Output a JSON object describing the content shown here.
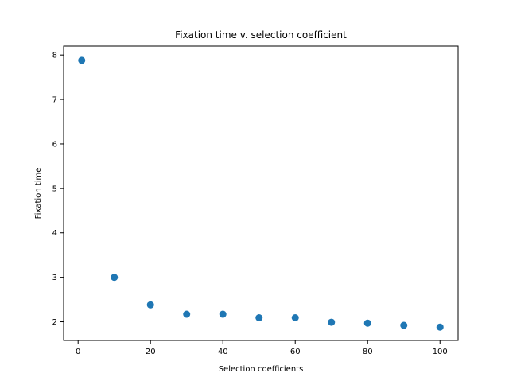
{
  "chart_data": {
    "type": "scatter",
    "title": "Fixation time v. selection coefficient",
    "xlabel": "Selection coefficients",
    "ylabel": "Fixation time",
    "xlim": [
      -4,
      105
    ],
    "ylim": [
      1.58,
      8.2
    ],
    "xticks": [
      0,
      20,
      40,
      60,
      80,
      100
    ],
    "yticks": [
      2,
      3,
      4,
      5,
      6,
      7,
      8
    ],
    "grid": false,
    "marker_color": "#1f77b4",
    "x": [
      1,
      10,
      20,
      30,
      40,
      50,
      60,
      70,
      80,
      90,
      100
    ],
    "y": [
      7.88,
      3.0,
      2.38,
      2.17,
      2.17,
      2.09,
      2.09,
      1.99,
      1.97,
      1.92,
      1.88
    ]
  }
}
